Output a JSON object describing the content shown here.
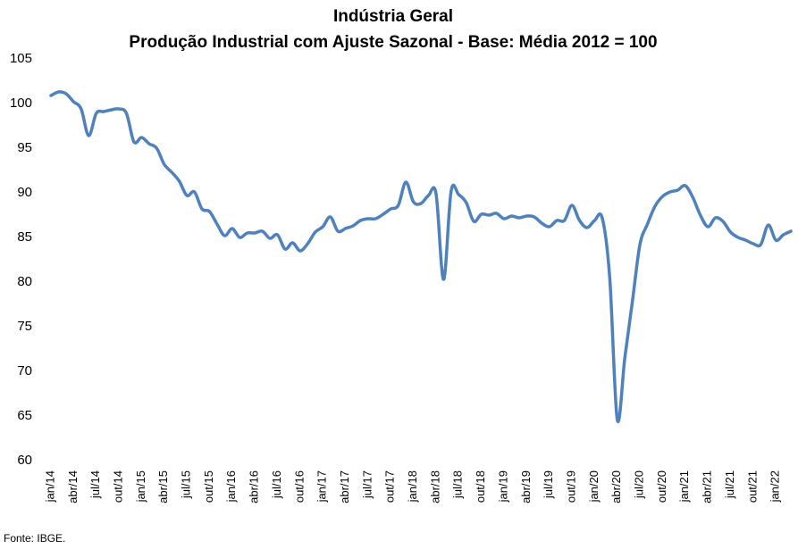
{
  "chart_data": {
    "type": "line",
    "title": "Indústria Geral",
    "subtitle": "Produção Industrial com Ajuste Sazonal - Base: Média 2012 = 100",
    "source": "Fonte: IBGE.",
    "categories": [
      "jan/14",
      null,
      null,
      "abr/14",
      null,
      null,
      "jul/14",
      null,
      null,
      "out/14",
      null,
      null,
      "jan/15",
      null,
      null,
      "abr/15",
      null,
      null,
      "jul/15",
      null,
      null,
      "out/15",
      null,
      null,
      "jan/16",
      null,
      null,
      "abr/16",
      null,
      null,
      "jul/16",
      null,
      null,
      "out/16",
      null,
      null,
      "jan/17",
      null,
      null,
      "abr/17",
      null,
      null,
      "jul/17",
      null,
      null,
      "out/17",
      null,
      null,
      "jan/18",
      null,
      null,
      "abr/18",
      null,
      null,
      "jul/18",
      null,
      null,
      "out/18",
      null,
      null,
      "jan/19",
      null,
      null,
      "abr/19",
      null,
      null,
      "jul/19",
      null,
      null,
      "out/19",
      null,
      null,
      "jan/20",
      null,
      null,
      "abr/20",
      null,
      null,
      "jul/20",
      null,
      null,
      "out/20",
      null,
      null,
      "jan/21",
      null,
      null,
      "abr/21",
      null,
      null,
      "jul/21",
      null,
      null,
      "out/21",
      null,
      null,
      "jan/22",
      null,
      null
    ],
    "series": [
      {
        "color": "#4f81bd",
        "values": [
          100.9,
          101.3,
          101.1,
          100.2,
          99.4,
          96.4,
          98.9,
          99.1,
          99.3,
          99.4,
          98.9,
          95.7,
          96.2,
          95.5,
          95.0,
          93.2,
          92.3,
          91.3,
          89.7,
          90.1,
          88.2,
          87.9,
          86.5,
          85.2,
          86.0,
          85.0,
          85.5,
          85.5,
          85.7,
          84.9,
          85.3,
          83.7,
          84.4,
          83.5,
          84.3,
          85.6,
          86.2,
          87.3,
          85.7,
          86.0,
          86.3,
          86.9,
          87.1,
          87.1,
          87.6,
          88.2,
          88.6,
          91.2,
          89.0,
          88.8,
          89.7,
          89.9,
          80.3,
          90.2,
          89.8,
          88.9,
          86.8,
          87.6,
          87.5,
          87.7,
          87.1,
          87.4,
          87.2,
          87.4,
          87.3,
          86.6,
          86.2,
          86.9,
          86.9,
          88.6,
          86.9,
          86.1,
          86.9,
          87.2,
          80.5,
          64.6,
          71.5,
          77.8,
          84.2,
          86.5,
          88.5,
          89.6,
          90.1,
          90.3,
          90.8,
          89.5,
          87.5,
          86.2,
          87.2,
          86.8,
          85.6,
          85.0,
          84.7,
          84.3,
          84.2,
          86.4,
          84.7,
          85.3,
          85.7
        ]
      }
    ],
    "ylim": [
      60,
      105
    ],
    "yticks": [
      60,
      65,
      70,
      75,
      80,
      85,
      90,
      95,
      100,
      105
    ],
    "grid": false
  }
}
